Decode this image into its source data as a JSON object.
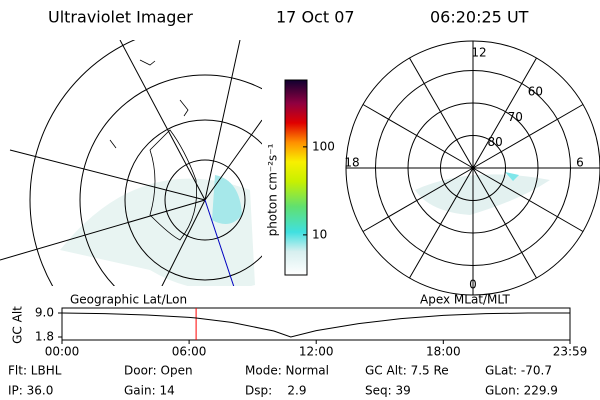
{
  "header": {
    "title": "Ultraviolet Imager",
    "date": "17 Oct 07",
    "time": "06:20:25 UT"
  },
  "colorbar": {
    "label": "photon cm⁻²s⁻¹",
    "log": true,
    "lim": [
      3.5,
      575
    ],
    "ticks": [
      10,
      100
    ]
  },
  "polar": {
    "mlt_labels": [
      "12",
      "18",
      "6",
      "0"
    ],
    "rings": [
      60,
      70,
      80
    ]
  },
  "chart_data": {
    "type": "line",
    "left_label": "Geographic Lat/Lon",
    "right_label": "Apex MLat/MLT",
    "ylabel": "GC Alt",
    "x": [
      0,
      2,
      4,
      6,
      6.33,
      8,
      10,
      10.8,
      12,
      14,
      16,
      18,
      20,
      22,
      23.98
    ],
    "series": [
      {
        "color": "#000000",
        "values": [
          9.0,
          8.8,
          8.4,
          7.7,
          7.5,
          6.2,
          3.6,
          1.8,
          3.7,
          5.8,
          7.3,
          8.3,
          8.8,
          9.0,
          9.0
        ]
      }
    ],
    "xlim": [
      0,
      23.98
    ],
    "xticks": [
      {
        "value": 0,
        "label": "00:00"
      },
      {
        "value": 6,
        "label": "06:00"
      },
      {
        "value": 12,
        "label": "12:00"
      },
      {
        "value": 18,
        "label": "18:00"
      },
      {
        "value": 23.98,
        "label": "23:59"
      }
    ],
    "ylim": [
      0.9,
      10.5
    ],
    "yticks": [
      {
        "value": 9,
        "label": "9.0"
      },
      1.8
    ],
    "cursor_x": 6.33,
    "cursor_color": "#ff0000"
  },
  "info": [
    [
      "Flt: LBHL",
      "Door: Open",
      "Mode: Normal",
      "GC Alt: 7.5 Re",
      "GLat: -70.7"
    ],
    [
      "IP: 36.0",
      "Gain: 14",
      "Dsp:    2.9",
      "Seq: 39",
      "GLon: 229.9"
    ]
  ]
}
